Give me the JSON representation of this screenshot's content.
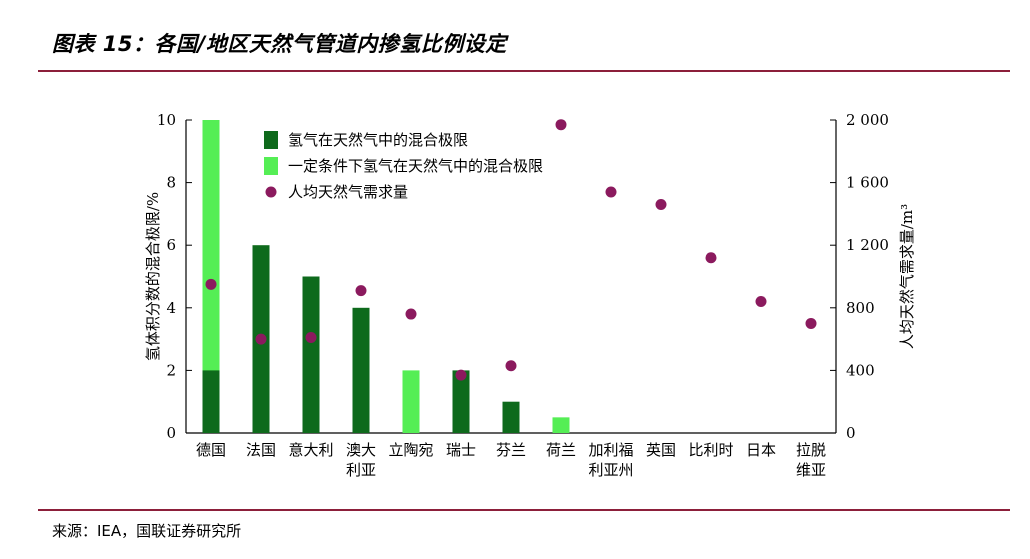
{
  "header": {
    "title": "图表 15：各国/地区天然气管道内掺氢比例设定"
  },
  "footer": {
    "source": "来源：IEA，国联证券研究所"
  },
  "colors": {
    "rule": "#8c1f3a",
    "dark_green": "#0e6a1c",
    "light_green": "#55ee55",
    "dot": "#8b1a5e"
  },
  "chart_data": {
    "type": "bar",
    "categories": [
      "德国",
      "法国",
      "意大利",
      "澳大利亚",
      "立陶宛",
      "瑞士",
      "芬兰",
      "荷兰",
      "加利福利亚州",
      "英国",
      "比利时",
      "日本",
      "拉脱维亚"
    ],
    "category_lines": [
      [
        "德国"
      ],
      [
        "法国"
      ],
      [
        "意大利"
      ],
      [
        "澳大",
        "利亚"
      ],
      [
        "立陶宛"
      ],
      [
        "瑞士"
      ],
      [
        "芬兰"
      ],
      [
        "荷兰"
      ],
      [
        "加利福",
        "利亚州"
      ],
      [
        "英国"
      ],
      [
        "比利时"
      ],
      [
        "日本"
      ],
      [
        "拉脱",
        "维亚"
      ]
    ],
    "series": [
      {
        "name": "氢气在天然气中的混合极限",
        "axis": "left",
        "kind": "bar",
        "values": [
          2,
          6,
          5,
          4,
          0,
          2,
          1,
          0,
          0,
          0,
          0,
          0,
          0
        ]
      },
      {
        "name": "一定条件下氢气在天然气中的混合极限",
        "axis": "left",
        "kind": "bar",
        "values": [
          10,
          0,
          0,
          0,
          2,
          0,
          0,
          0.5,
          0,
          0,
          0,
          0,
          0
        ]
      },
      {
        "name": "人均天然气需求量",
        "axis": "right",
        "kind": "scatter",
        "values": [
          950,
          600,
          610,
          910,
          760,
          370,
          430,
          1970,
          1540,
          1460,
          1120,
          840,
          700
        ]
      }
    ],
    "ylabel": "氢体积分数的混合极限/%",
    "ylim": [
      0,
      10
    ],
    "yticks": [
      "0",
      "2",
      "4",
      "6",
      "8",
      "10"
    ],
    "y2label": "人均天然气需求量/m³",
    "y2lim": [
      0,
      2000
    ],
    "y2ticks": [
      "0",
      "400",
      "800",
      "1 200",
      "1 600",
      "2 000"
    ],
    "legend_position": "top-left"
  }
}
